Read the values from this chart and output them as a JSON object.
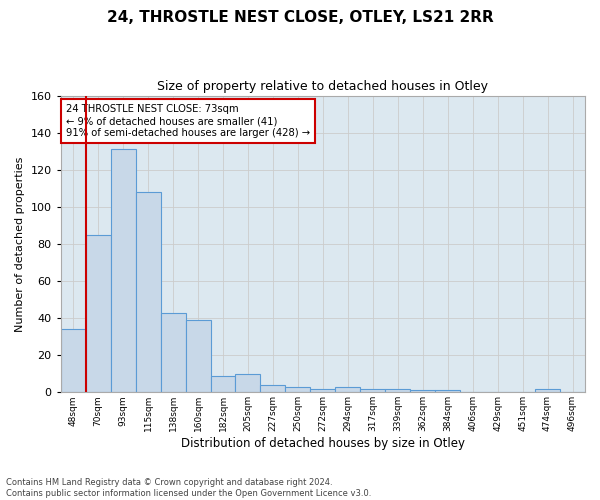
{
  "title": "24, THROSTLE NEST CLOSE, OTLEY, LS21 2RR",
  "subtitle": "Size of property relative to detached houses in Otley",
  "xlabel": "Distribution of detached houses by size in Otley",
  "ylabel": "Number of detached properties",
  "footnote1": "Contains HM Land Registry data © Crown copyright and database right 2024.",
  "footnote2": "Contains public sector information licensed under the Open Government Licence v3.0.",
  "categories": [
    "48sqm",
    "70sqm",
    "93sqm",
    "115sqm",
    "138sqm",
    "160sqm",
    "182sqm",
    "205sqm",
    "227sqm",
    "250sqm",
    "272sqm",
    "294sqm",
    "317sqm",
    "339sqm",
    "362sqm",
    "384sqm",
    "406sqm",
    "429sqm",
    "451sqm",
    "474sqm",
    "496sqm"
  ],
  "values": [
    34,
    85,
    131,
    108,
    43,
    39,
    9,
    10,
    4,
    3,
    2,
    3,
    2,
    2,
    1,
    1,
    0,
    0,
    0,
    2,
    0
  ],
  "bar_color": "#c8d8e8",
  "bar_edge_color": "#5b9bd5",
  "vline_color": "#cc0000",
  "vline_x": 0.5,
  "annotation_box_text": "24 THROSTLE NEST CLOSE: 73sqm\n← 9% of detached houses are smaller (41)\n91% of semi-detached houses are larger (428) →",
  "annotation_box_color": "#cc0000",
  "annotation_box_bg": "#ffffff",
  "ylim": [
    0,
    160
  ],
  "yticks": [
    0,
    20,
    40,
    60,
    80,
    100,
    120,
    140,
    160
  ],
  "grid_color": "#cccccc",
  "background_color": "#dce8f0",
  "title_fontsize": 11,
  "subtitle_fontsize": 9,
  "xlabel_fontsize": 8.5,
  "ylabel_fontsize": 8
}
